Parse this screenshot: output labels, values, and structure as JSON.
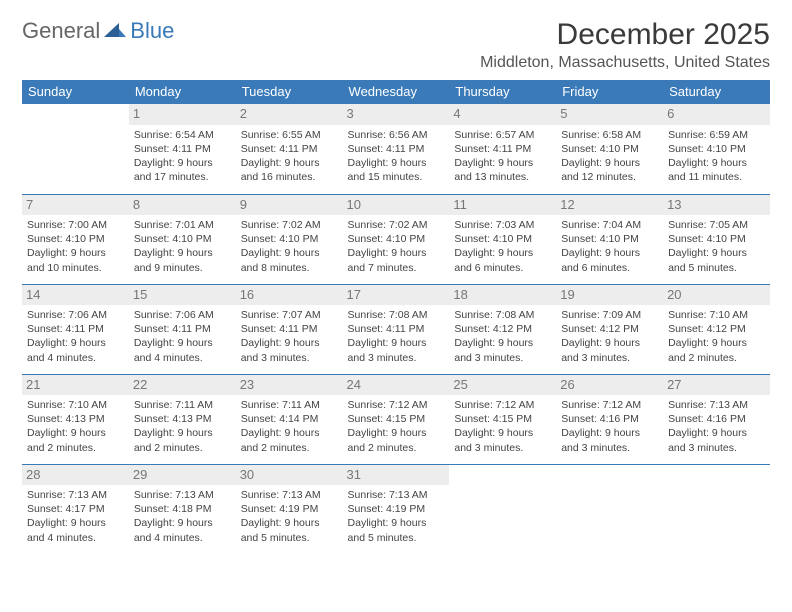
{
  "logo": {
    "part1": "General",
    "part2": "Blue"
  },
  "title": "December 2025",
  "location": "Middleton, Massachusetts, United States",
  "header_color": "#3a7ab8",
  "daynum_bg": "#ededed",
  "days": [
    "Sunday",
    "Monday",
    "Tuesday",
    "Wednesday",
    "Thursday",
    "Friday",
    "Saturday"
  ],
  "weeks": [
    [
      null,
      {
        "n": "1",
        "sr": "Sunrise: 6:54 AM",
        "ss": "Sunset: 4:11 PM",
        "dl": "Daylight: 9 hours and 17 minutes."
      },
      {
        "n": "2",
        "sr": "Sunrise: 6:55 AM",
        "ss": "Sunset: 4:11 PM",
        "dl": "Daylight: 9 hours and 16 minutes."
      },
      {
        "n": "3",
        "sr": "Sunrise: 6:56 AM",
        "ss": "Sunset: 4:11 PM",
        "dl": "Daylight: 9 hours and 15 minutes."
      },
      {
        "n": "4",
        "sr": "Sunrise: 6:57 AM",
        "ss": "Sunset: 4:11 PM",
        "dl": "Daylight: 9 hours and 13 minutes."
      },
      {
        "n": "5",
        "sr": "Sunrise: 6:58 AM",
        "ss": "Sunset: 4:10 PM",
        "dl": "Daylight: 9 hours and 12 minutes."
      },
      {
        "n": "6",
        "sr": "Sunrise: 6:59 AM",
        "ss": "Sunset: 4:10 PM",
        "dl": "Daylight: 9 hours and 11 minutes."
      }
    ],
    [
      {
        "n": "7",
        "sr": "Sunrise: 7:00 AM",
        "ss": "Sunset: 4:10 PM",
        "dl": "Daylight: 9 hours and 10 minutes."
      },
      {
        "n": "8",
        "sr": "Sunrise: 7:01 AM",
        "ss": "Sunset: 4:10 PM",
        "dl": "Daylight: 9 hours and 9 minutes."
      },
      {
        "n": "9",
        "sr": "Sunrise: 7:02 AM",
        "ss": "Sunset: 4:10 PM",
        "dl": "Daylight: 9 hours and 8 minutes."
      },
      {
        "n": "10",
        "sr": "Sunrise: 7:02 AM",
        "ss": "Sunset: 4:10 PM",
        "dl": "Daylight: 9 hours and 7 minutes."
      },
      {
        "n": "11",
        "sr": "Sunrise: 7:03 AM",
        "ss": "Sunset: 4:10 PM",
        "dl": "Daylight: 9 hours and 6 minutes."
      },
      {
        "n": "12",
        "sr": "Sunrise: 7:04 AM",
        "ss": "Sunset: 4:10 PM",
        "dl": "Daylight: 9 hours and 6 minutes."
      },
      {
        "n": "13",
        "sr": "Sunrise: 7:05 AM",
        "ss": "Sunset: 4:10 PM",
        "dl": "Daylight: 9 hours and 5 minutes."
      }
    ],
    [
      {
        "n": "14",
        "sr": "Sunrise: 7:06 AM",
        "ss": "Sunset: 4:11 PM",
        "dl": "Daylight: 9 hours and 4 minutes."
      },
      {
        "n": "15",
        "sr": "Sunrise: 7:06 AM",
        "ss": "Sunset: 4:11 PM",
        "dl": "Daylight: 9 hours and 4 minutes."
      },
      {
        "n": "16",
        "sr": "Sunrise: 7:07 AM",
        "ss": "Sunset: 4:11 PM",
        "dl": "Daylight: 9 hours and 3 minutes."
      },
      {
        "n": "17",
        "sr": "Sunrise: 7:08 AM",
        "ss": "Sunset: 4:11 PM",
        "dl": "Daylight: 9 hours and 3 minutes."
      },
      {
        "n": "18",
        "sr": "Sunrise: 7:08 AM",
        "ss": "Sunset: 4:12 PM",
        "dl": "Daylight: 9 hours and 3 minutes."
      },
      {
        "n": "19",
        "sr": "Sunrise: 7:09 AM",
        "ss": "Sunset: 4:12 PM",
        "dl": "Daylight: 9 hours and 3 minutes."
      },
      {
        "n": "20",
        "sr": "Sunrise: 7:10 AM",
        "ss": "Sunset: 4:12 PM",
        "dl": "Daylight: 9 hours and 2 minutes."
      }
    ],
    [
      {
        "n": "21",
        "sr": "Sunrise: 7:10 AM",
        "ss": "Sunset: 4:13 PM",
        "dl": "Daylight: 9 hours and 2 minutes."
      },
      {
        "n": "22",
        "sr": "Sunrise: 7:11 AM",
        "ss": "Sunset: 4:13 PM",
        "dl": "Daylight: 9 hours and 2 minutes."
      },
      {
        "n": "23",
        "sr": "Sunrise: 7:11 AM",
        "ss": "Sunset: 4:14 PM",
        "dl": "Daylight: 9 hours and 2 minutes."
      },
      {
        "n": "24",
        "sr": "Sunrise: 7:12 AM",
        "ss": "Sunset: 4:15 PM",
        "dl": "Daylight: 9 hours and 2 minutes."
      },
      {
        "n": "25",
        "sr": "Sunrise: 7:12 AM",
        "ss": "Sunset: 4:15 PM",
        "dl": "Daylight: 9 hours and 3 minutes."
      },
      {
        "n": "26",
        "sr": "Sunrise: 7:12 AM",
        "ss": "Sunset: 4:16 PM",
        "dl": "Daylight: 9 hours and 3 minutes."
      },
      {
        "n": "27",
        "sr": "Sunrise: 7:13 AM",
        "ss": "Sunset: 4:16 PM",
        "dl": "Daylight: 9 hours and 3 minutes."
      }
    ],
    [
      {
        "n": "28",
        "sr": "Sunrise: 7:13 AM",
        "ss": "Sunset: 4:17 PM",
        "dl": "Daylight: 9 hours and 4 minutes."
      },
      {
        "n": "29",
        "sr": "Sunrise: 7:13 AM",
        "ss": "Sunset: 4:18 PM",
        "dl": "Daylight: 9 hours and 4 minutes."
      },
      {
        "n": "30",
        "sr": "Sunrise: 7:13 AM",
        "ss": "Sunset: 4:19 PM",
        "dl": "Daylight: 9 hours and 5 minutes."
      },
      {
        "n": "31",
        "sr": "Sunrise: 7:13 AM",
        "ss": "Sunset: 4:19 PM",
        "dl": "Daylight: 9 hours and 5 minutes."
      },
      null,
      null,
      null
    ]
  ]
}
